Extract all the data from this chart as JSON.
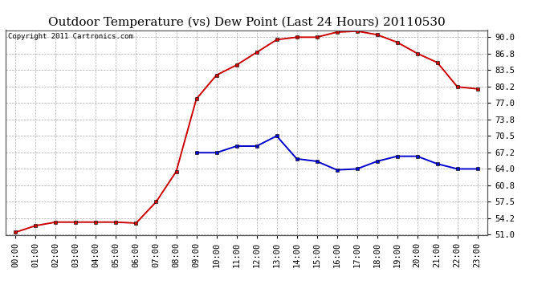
{
  "title": "Outdoor Temperature (vs) Dew Point (Last 24 Hours) 20110530",
  "copyright": "Copyright 2011 Cartronics.com",
  "x_labels": [
    "00:00",
    "01:00",
    "02:00",
    "03:00",
    "04:00",
    "05:00",
    "06:00",
    "07:00",
    "08:00",
    "09:00",
    "10:00",
    "11:00",
    "12:00",
    "13:00",
    "14:00",
    "15:00",
    "16:00",
    "17:00",
    "18:00",
    "19:00",
    "20:00",
    "21:00",
    "22:00",
    "23:00"
  ],
  "temp_data": [
    51.5,
    52.8,
    53.5,
    53.5,
    53.5,
    53.5,
    53.3,
    57.5,
    63.5,
    77.8,
    82.5,
    84.5,
    87.0,
    89.5,
    90.0,
    90.0,
    91.0,
    91.2,
    90.5,
    89.0,
    86.8,
    85.0,
    80.2,
    79.8
  ],
  "dew_data": [
    null,
    null,
    null,
    null,
    null,
    null,
    null,
    null,
    null,
    67.2,
    67.2,
    68.5,
    68.5,
    70.5,
    66.0,
    65.5,
    63.8,
    64.0,
    65.5,
    66.5,
    66.5,
    65.0,
    64.0,
    64.0
  ],
  "temp_color": "#cc0000",
  "dew_color": "#0000cc",
  "bg_color": "#ffffff",
  "grid_color": "#aaaaaa",
  "ylim_min": 51.0,
  "ylim_max": 91.4,
  "yticks": [
    51.0,
    54.2,
    57.5,
    60.8,
    64.0,
    67.2,
    70.5,
    73.8,
    77.0,
    80.2,
    83.5,
    86.8,
    90.0
  ],
  "title_fontsize": 11,
  "copyright_fontsize": 6.5,
  "tick_fontsize": 7.5,
  "markersize": 3.5,
  "linewidth": 1.4
}
